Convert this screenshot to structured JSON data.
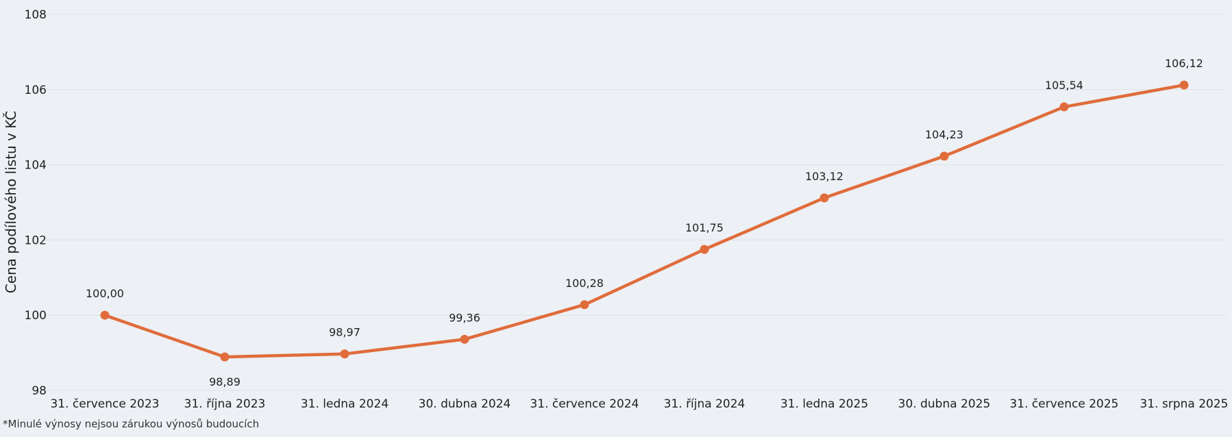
{
  "footnote": "*Minulé výnosy nejsou zárukou výnosů budoucích",
  "chart_data": {
    "type": "line",
    "ylabel": "Cena podílového listu v KČ",
    "xlabel": "",
    "ylim": [
      98,
      108
    ],
    "yticks": [
      "98",
      "100",
      "102",
      "104",
      "106",
      "108"
    ],
    "grid": true,
    "categories": [
      "31. července 2023",
      "31. října 2023",
      "31. ledna 2024",
      "30. dubna 2024",
      "31. července 2024",
      "31. října 2024",
      "31. ledna 2025",
      "30. dubna 2025",
      "31. července 2025",
      "31. srpna 2025"
    ],
    "series": [
      {
        "values": [
          100.0,
          98.89,
          98.97,
          99.36,
          100.28,
          101.75,
          103.12,
          104.23,
          105.54,
          106.12
        ],
        "labels": [
          "100,00",
          "98,89",
          "98,97",
          "99,36",
          "100,28",
          "101,75",
          "103,12",
          "104,23",
          "105,54",
          "106,12"
        ],
        "color": "#e06c3b"
      }
    ],
    "colors": {
      "line": "#e06c3b",
      "grid": "#dde1e7",
      "background": "#edf0f4"
    }
  }
}
